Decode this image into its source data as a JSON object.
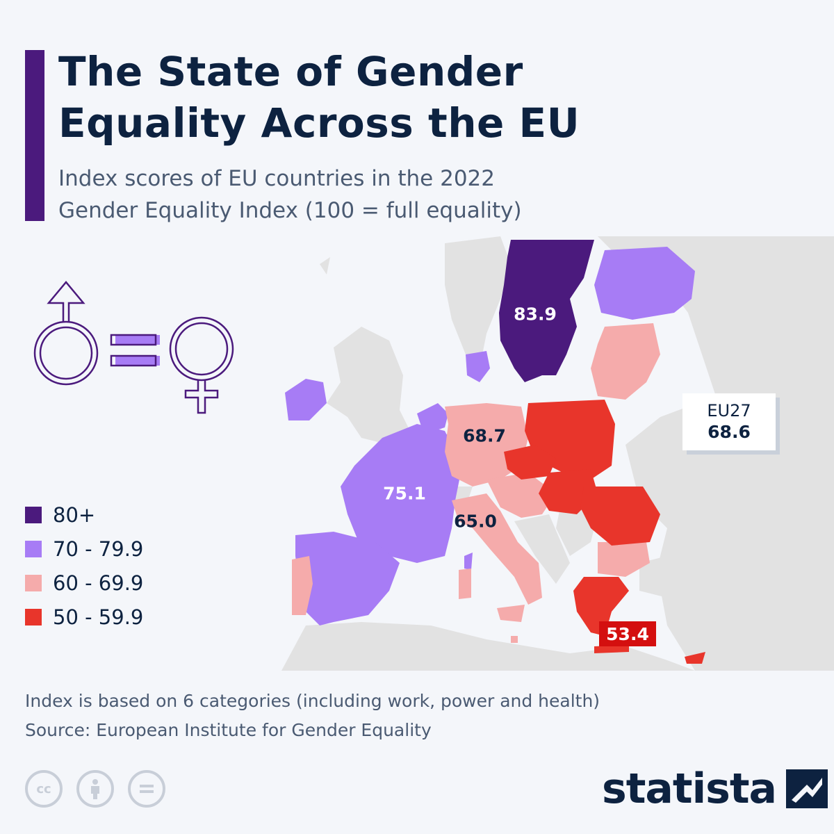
{
  "header": {
    "title_line1": "The State of Gender",
    "title_line2": "Equality Across the EU",
    "subtitle_line1": "Index scores of EU countries in the 2022",
    "subtitle_line2": "Gender Equality Index (100 = full equality)"
  },
  "colors": {
    "band_80_plus": "#4b1a7d",
    "band_70_79": "#a77cf5",
    "band_60_69": "#f5abab",
    "band_50_59": "#e8352b",
    "non_eu": "#e2e2e2",
    "background": "#f4f6fa",
    "title": "#0d2240",
    "accent_bar": "#4b1a7d"
  },
  "legend": {
    "items": [
      {
        "label": "80+",
        "color": "#4b1a7d"
      },
      {
        "label": "70 - 79.9",
        "color": "#a77cf5"
      },
      {
        "label": "60 - 69.9",
        "color": "#f5abab"
      },
      {
        "label": "50 - 59.9",
        "color": "#e8352b"
      }
    ]
  },
  "map": {
    "labels": {
      "sweden": "83.9",
      "germany": "68.7",
      "france": "75.1",
      "italy": "65.0",
      "greece": "53.4"
    },
    "eu_average": {
      "name": "EU27",
      "value": "68.6"
    },
    "countries": [
      {
        "name": "Sweden",
        "value": 83.9
      },
      {
        "name": "France",
        "value": 75.1
      },
      {
        "name": "Germany",
        "value": 68.7
      },
      {
        "name": "Italy",
        "value": 65.0
      },
      {
        "name": "Greece",
        "value": 53.4
      }
    ]
  },
  "footer": {
    "note": "Index is based on 6 categories (including work, power and health)",
    "source": "Source: European Institute for Gender Equality",
    "brand": "statista",
    "cc_icons": [
      "cc-icon",
      "attribution-icon",
      "no-derivatives-icon"
    ]
  }
}
